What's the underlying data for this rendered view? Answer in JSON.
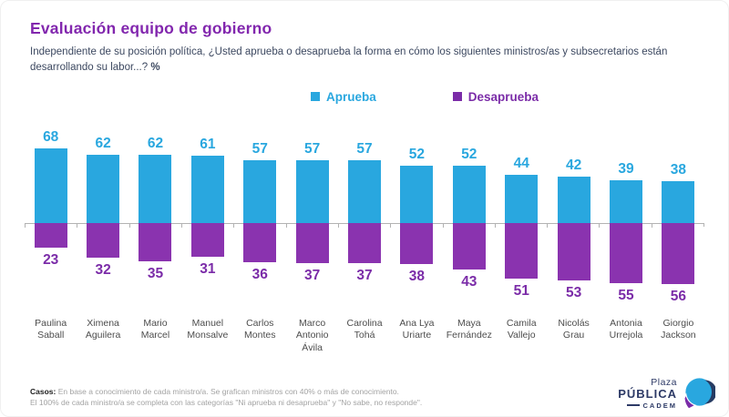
{
  "header": {
    "title": "Evaluación equipo de gobierno",
    "question": "Independiente de su posición política, ¿Usted aprueba o desaprueba la forma en cómo los siguientes ministros/as y subsecretarios están desarrollando su labor...?",
    "question_suffix": "%"
  },
  "legend": {
    "items": [
      {
        "label": "Aprueba",
        "color": "#29A7DF"
      },
      {
        "label": "Desaprueba",
        "color": "#7B2CA8"
      }
    ]
  },
  "chart_data": {
    "type": "bar",
    "orientation": "diverging-vertical",
    "title": "Evaluación equipo de gobierno",
    "ylabel": "%",
    "baseline": 0,
    "grid": false,
    "legend_position": "top-center",
    "categories": [
      "Paulina Saball",
      "Ximena Aguilera",
      "Mario Marcel",
      "Manuel Monsalve",
      "Carlos Montes",
      "Marco Antonio Ávila",
      "Carolina Tohá",
      "Ana Lya Uriarte",
      "Maya Fernández",
      "Camila Vallejo",
      "Nicolás Grau",
      "Antonia Urrejola",
      "Giorgio Jackson"
    ],
    "series": [
      {
        "name": "Aprueba",
        "direction": "up",
        "color": "#29A7DF",
        "values": [
          68,
          62,
          62,
          61,
          57,
          57,
          57,
          52,
          52,
          44,
          42,
          39,
          38
        ]
      },
      {
        "name": "Desaprueba",
        "direction": "down",
        "color": "#8A33AF",
        "values": [
          23,
          32,
          35,
          31,
          36,
          37,
          37,
          38,
          43,
          51,
          53,
          55,
          56
        ]
      }
    ]
  },
  "footer": {
    "label": "Casos:",
    "line1": "En base a conocimiento de cada ministro/a. Se grafican ministros con 40% o más de conocimiento.",
    "line2": "El 100% de cada ministro/a se completa con las categorías \"Ni aprueba ni desaprueba\" y \"No sabe, no responde\"."
  },
  "logo": {
    "line1": "Plaza",
    "line2": "PÚBLICA",
    "line3": "CADEM",
    "brand_navy": "#2D3A66",
    "brand_blue": "#29A7DF",
    "brand_purple": "#7B2CA8"
  },
  "colors": {
    "title": "#8227AE",
    "subtitle": "#3C4860",
    "approve": "#29A7DF",
    "disapprove_bar": "#8A33AF",
    "disapprove_text": "#7B2CA8",
    "axis": "#b3b3b3"
  }
}
